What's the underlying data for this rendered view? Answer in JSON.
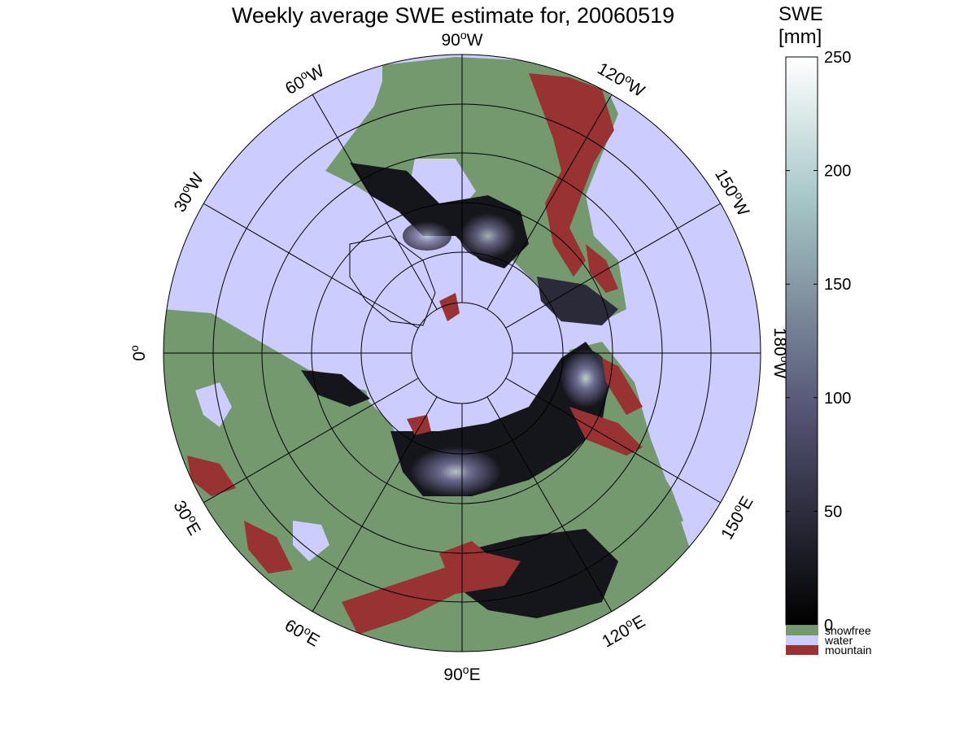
{
  "title": "Weekly average SWE estimate for, 20060519",
  "colorbar": {
    "title_line1": "SWE",
    "title_line2": "[mm]",
    "ticks": [
      0,
      50,
      100,
      150,
      200,
      250
    ],
    "range": [
      0,
      250
    ],
    "colormap": "bone",
    "colors": {
      "low": "#000000",
      "mid": "#5a5a78",
      "high_mid": "#8fb0b0",
      "high": "#ffffff"
    }
  },
  "legend": {
    "items": [
      {
        "label": "snowfree",
        "color": "#74996f"
      },
      {
        "label": "water",
        "color": "#ccccff"
      },
      {
        "label": "mountain",
        "color": "#993333"
      }
    ]
  },
  "map": {
    "projection": "north-polar-stereographic",
    "longitude_labels": [
      {
        "text": "90",
        "unit": "W"
      },
      {
        "text": "120",
        "unit": "W"
      },
      {
        "text": "150",
        "unit": "W"
      },
      {
        "text": "180",
        "unit": "W"
      },
      {
        "text": "150",
        "unit": "E"
      },
      {
        "text": "120",
        "unit": "E"
      },
      {
        "text": "90",
        "unit": "E"
      },
      {
        "text": "60",
        "unit": "E"
      },
      {
        "text": "30",
        "unit": "E"
      },
      {
        "text": "0",
        "unit": ""
      },
      {
        "text": "30",
        "unit": "W"
      },
      {
        "text": "60",
        "unit": "W"
      }
    ],
    "colors": {
      "water": "#ccccff",
      "land": "#74996f",
      "mountain": "#993333",
      "snow_dark": "#15151c",
      "snow_mid": "#5a5a78",
      "snow_light": "#c0cfd8"
    }
  }
}
